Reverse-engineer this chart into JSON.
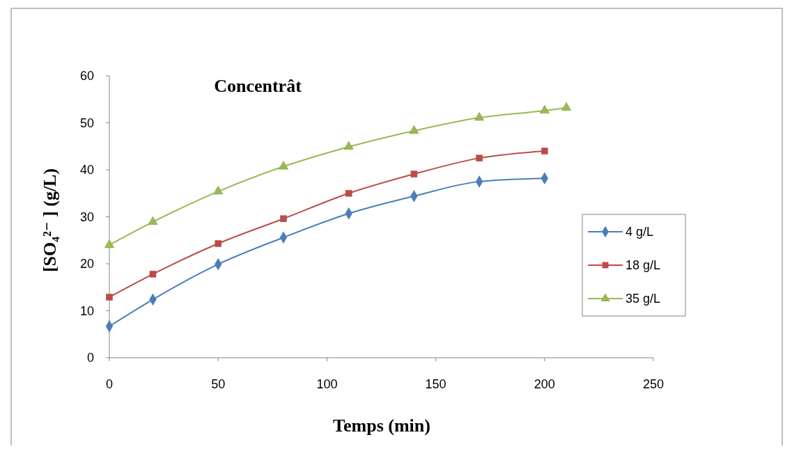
{
  "chart_data": {
    "type": "line",
    "title": "Concentrât",
    "xlabel": "Temps (min)",
    "ylabel": "[SO₄²⁻ ]  (g/L)",
    "xlim": [
      0,
      250
    ],
    "xticks": [
      0,
      50,
      100,
      150,
      200,
      250
    ],
    "ylim": [
      0,
      60
    ],
    "yticks": [
      0,
      10,
      20,
      30,
      40,
      50,
      60
    ],
    "grid": false,
    "legend": "right",
    "series": [
      {
        "name": "4 g/L",
        "color": "#4a7ebb",
        "marker": "diamond",
        "x": [
          0,
          20,
          50,
          80,
          110,
          140,
          170,
          200
        ],
        "values": [
          6.7,
          12.4,
          19.9,
          25.6,
          30.7,
          34.4,
          37.5,
          38.2
        ]
      },
      {
        "name": "18 g/L",
        "color": "#be4b48",
        "marker": "square",
        "x": [
          0,
          20,
          50,
          80,
          110,
          140,
          170,
          200
        ],
        "values": [
          12.9,
          17.8,
          24.3,
          29.6,
          35.0,
          39.1,
          42.5,
          44.0
        ]
      },
      {
        "name": "35 g/L",
        "color": "#98b954",
        "marker": "triangle",
        "x": [
          0,
          20,
          50,
          80,
          110,
          140,
          170,
          200,
          210
        ],
        "values": [
          24.0,
          28.9,
          35.4,
          40.7,
          44.9,
          48.3,
          51.1,
          52.6,
          53.2
        ]
      }
    ]
  }
}
